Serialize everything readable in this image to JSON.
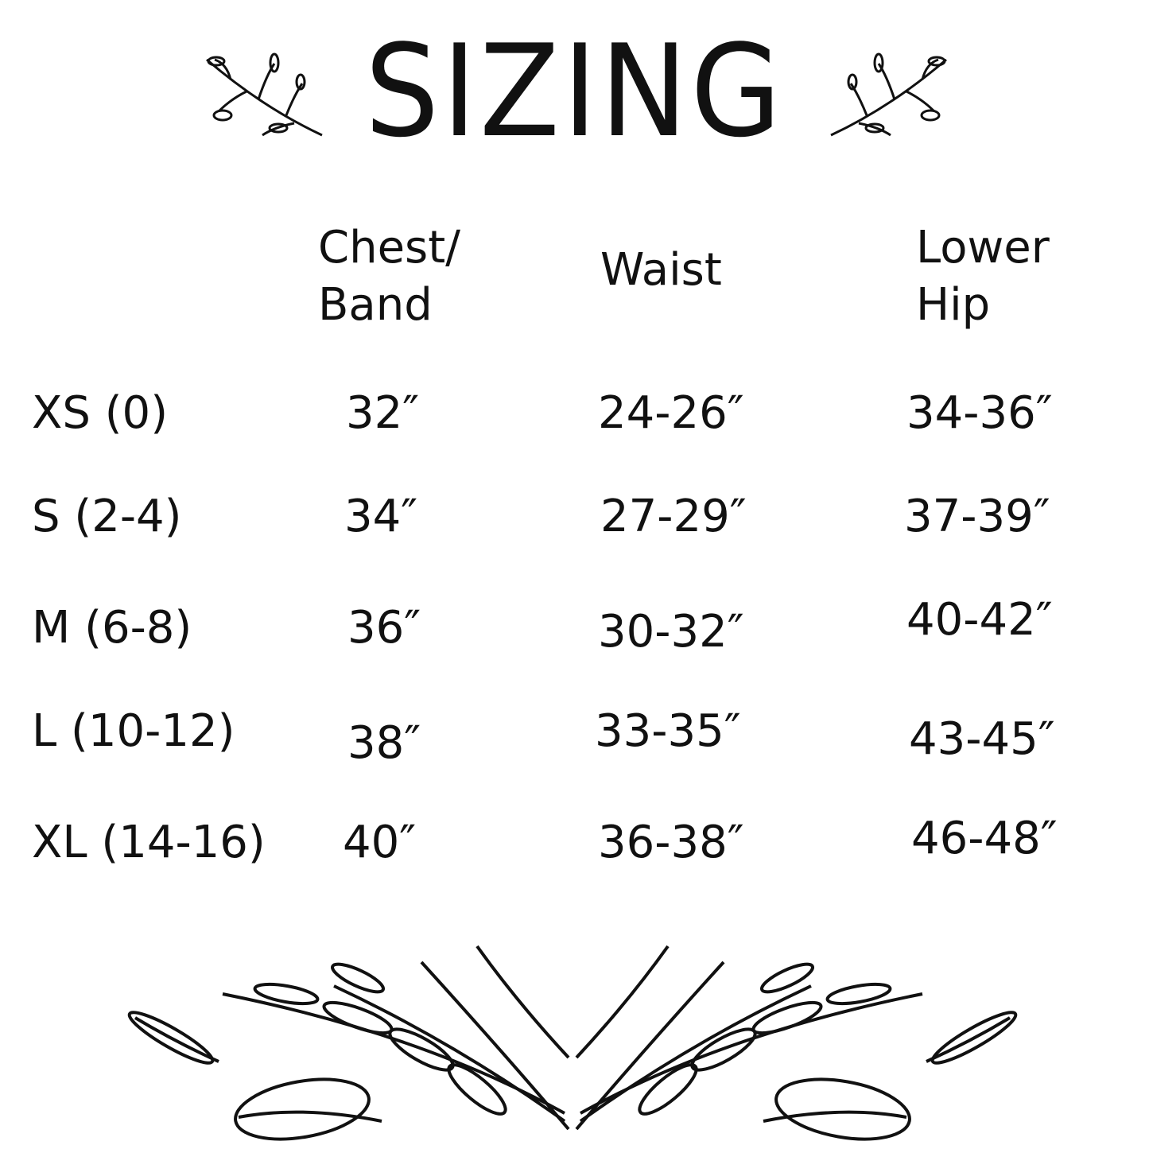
{
  "title": "SIZING",
  "columns": [
    {
      "line1": "Chest/",
      "line2": "Band"
    },
    {
      "line1": "Waist",
      "line2": ""
    },
    {
      "line1": "Lower",
      "line2": "Hip"
    }
  ],
  "rows": [
    {
      "size": "XS (0)",
      "chest": "32″",
      "waist": "24-26″",
      "hip": "34-36″"
    },
    {
      "size": "S (2-4)",
      "chest": "34″",
      "waist": "27-29″",
      "hip": "37-39″"
    },
    {
      "size": "M (6-8)",
      "chest": "36″",
      "waist": "30-32″",
      "hip": "40-42″"
    },
    {
      "size": "L (10-12)",
      "chest": "38″",
      "waist": "33-35″",
      "hip": "43-45″"
    },
    {
      "size": "XL (14-16)",
      "chest": "40″",
      "waist": "36-38″",
      "hip": "46-48″"
    }
  ],
  "decorations": [
    "leaf-sprig-left",
    "leaf-sprig-right",
    "leaf-garland-bottom"
  ]
}
